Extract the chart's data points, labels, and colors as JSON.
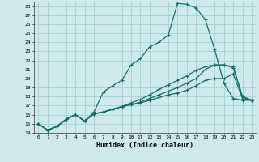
{
  "xlabel": "Humidex (Indice chaleur)",
  "ylabel": "",
  "xlim": [
    -0.5,
    23.5
  ],
  "ylim": [
    14,
    28.5
  ],
  "xticks": [
    0,
    1,
    2,
    3,
    4,
    5,
    6,
    7,
    8,
    9,
    10,
    11,
    12,
    13,
    14,
    15,
    16,
    17,
    18,
    19,
    20,
    21,
    22,
    23
  ],
  "yticks": [
    14,
    15,
    16,
    17,
    18,
    19,
    20,
    21,
    22,
    23,
    24,
    25,
    26,
    27,
    28
  ],
  "background_color": "#ceeaea",
  "grid_color": "#9ecece",
  "line_color": "#1a6e68",
  "lines": [
    {
      "x": [
        0,
        1,
        2,
        3,
        4,
        5,
        6,
        7,
        8,
        9,
        10,
        11,
        12,
        13,
        14,
        15,
        16,
        17,
        18,
        19,
        20,
        21,
        22,
        23
      ],
      "y": [
        15.0,
        14.3,
        14.7,
        15.5,
        16.0,
        15.3,
        16.3,
        18.5,
        19.2,
        19.8,
        21.5,
        22.2,
        23.5,
        24.0,
        24.8,
        28.3,
        28.2,
        27.8,
        26.5,
        23.2,
        19.5,
        17.8,
        17.6,
        17.6
      ]
    },
    {
      "x": [
        0,
        1,
        2,
        3,
        4,
        5,
        6,
        7,
        8,
        9,
        10,
        11,
        12,
        13,
        14,
        15,
        16,
        17,
        18,
        19,
        20,
        21,
        22,
        23
      ],
      "y": [
        15.0,
        14.3,
        14.7,
        15.5,
        16.0,
        15.3,
        16.1,
        16.3,
        16.6,
        16.9,
        17.3,
        17.7,
        18.2,
        18.8,
        19.3,
        19.8,
        20.3,
        20.9,
        21.3,
        21.5,
        21.5,
        21.3,
        18.0,
        17.6
      ]
    },
    {
      "x": [
        0,
        1,
        2,
        3,
        4,
        5,
        6,
        7,
        8,
        9,
        10,
        11,
        12,
        13,
        14,
        15,
        16,
        17,
        18,
        19,
        20,
        21,
        22,
        23
      ],
      "y": [
        15.0,
        14.3,
        14.7,
        15.5,
        16.0,
        15.3,
        16.1,
        16.3,
        16.6,
        16.9,
        17.1,
        17.4,
        17.8,
        18.2,
        18.6,
        19.0,
        19.5,
        20.0,
        21.0,
        21.5,
        21.5,
        21.2,
        18.0,
        17.6
      ]
    },
    {
      "x": [
        0,
        1,
        2,
        3,
        4,
        5,
        6,
        7,
        8,
        9,
        10,
        11,
        12,
        13,
        14,
        15,
        16,
        17,
        18,
        19,
        20,
        21,
        22,
        23
      ],
      "y": [
        15.0,
        14.3,
        14.7,
        15.5,
        16.0,
        15.3,
        16.1,
        16.3,
        16.6,
        16.9,
        17.1,
        17.3,
        17.6,
        17.9,
        18.2,
        18.4,
        18.7,
        19.2,
        19.8,
        20.0,
        20.0,
        20.5,
        17.8,
        17.6
      ]
    }
  ],
  "marker": "+",
  "marker_size": 3,
  "line_width": 0.9
}
